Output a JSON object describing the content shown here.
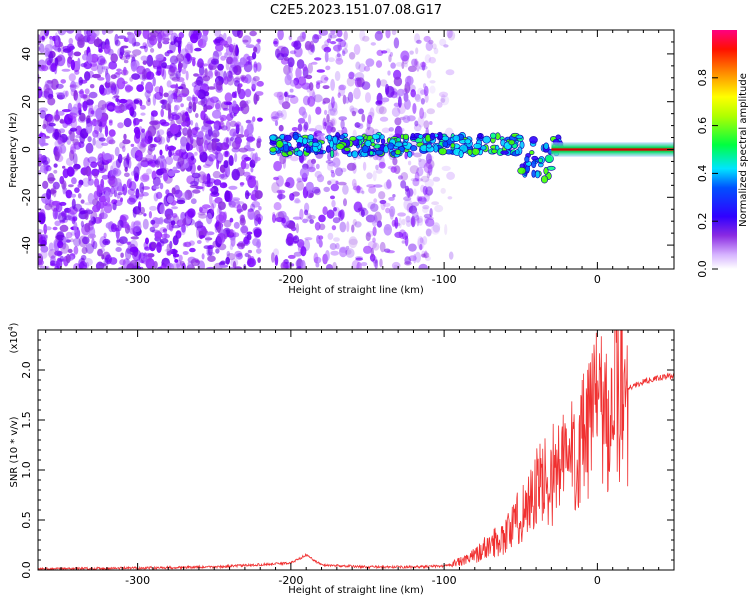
{
  "title": "C2E5.2023.151.07.08.G17",
  "chart_data": [
    {
      "type": "heatmap",
      "xlabel": "Height of straight line (km)",
      "ylabel": "Frequency (Hz)",
      "xlim": [
        -365,
        50
      ],
      "ylim": [
        -50,
        50
      ],
      "xticks": [
        -300,
        -200,
        -100,
        0
      ],
      "yticks": [
        -40,
        -20,
        0,
        20,
        40
      ],
      "colorbar": {
        "label": "Normalized spectral amplitude",
        "range": [
          0,
          1
        ],
        "ticks": [
          "0.0",
          "0.2",
          "0.4",
          "0.6",
          "0.8"
        ],
        "colors": [
          "#ffffff",
          "#8a2be2",
          "#0000ff",
          "#00e5ff",
          "#00ff00",
          "#ffff00",
          "#ff8c00",
          "#ff0000",
          "#ff0080"
        ]
      },
      "trace_line_center_freq": [
        {
          "x": -215,
          "y": 3
        },
        {
          "x": -150,
          "y": 2
        },
        {
          "x": -100,
          "y": 1
        },
        {
          "x": -60,
          "y": 0
        },
        {
          "x": -30,
          "y": 0
        },
        {
          "x": 0,
          "y": 0
        },
        {
          "x": 50,
          "y": 0
        }
      ]
    },
    {
      "type": "line",
      "xlabel": "Height of straight line (km)",
      "ylabel": "SNR (10 * v/v)",
      "yexp": "(x10",
      "yexp_power": "4",
      "yexp_close": ")",
      "xlim": [
        -365,
        50
      ],
      "ylim": [
        0,
        2.4
      ],
      "xticks": [
        -300,
        -200,
        -100,
        0
      ],
      "yticks": [
        "0.0",
        "0.5",
        "1.0",
        "1.5",
        "2.0"
      ],
      "color": "#f03030",
      "series": [
        {
          "values": [
            [
              -365,
              0.01
            ],
            [
              -300,
              0.02
            ],
            [
              -250,
              0.03
            ],
            [
              -200,
              0.07
            ],
            [
              -190,
              0.15
            ],
            [
              -180,
              0.05
            ],
            [
              -150,
              0.03
            ],
            [
              -120,
              0.03
            ],
            [
              -100,
              0.04
            ],
            [
              -85,
              0.1
            ],
            [
              -70,
              0.25
            ],
            [
              -60,
              0.35
            ],
            [
              -50,
              0.55
            ],
            [
              -40,
              0.8
            ],
            [
              -30,
              0.95
            ],
            [
              -20,
              1.1
            ],
            [
              -10,
              1.25
            ],
            [
              0,
              1.45
            ],
            [
              10,
              1.7
            ],
            [
              20,
              1.82
            ],
            [
              30,
              1.88
            ],
            [
              40,
              1.92
            ],
            [
              50,
              1.94
            ]
          ]
        }
      ]
    }
  ]
}
